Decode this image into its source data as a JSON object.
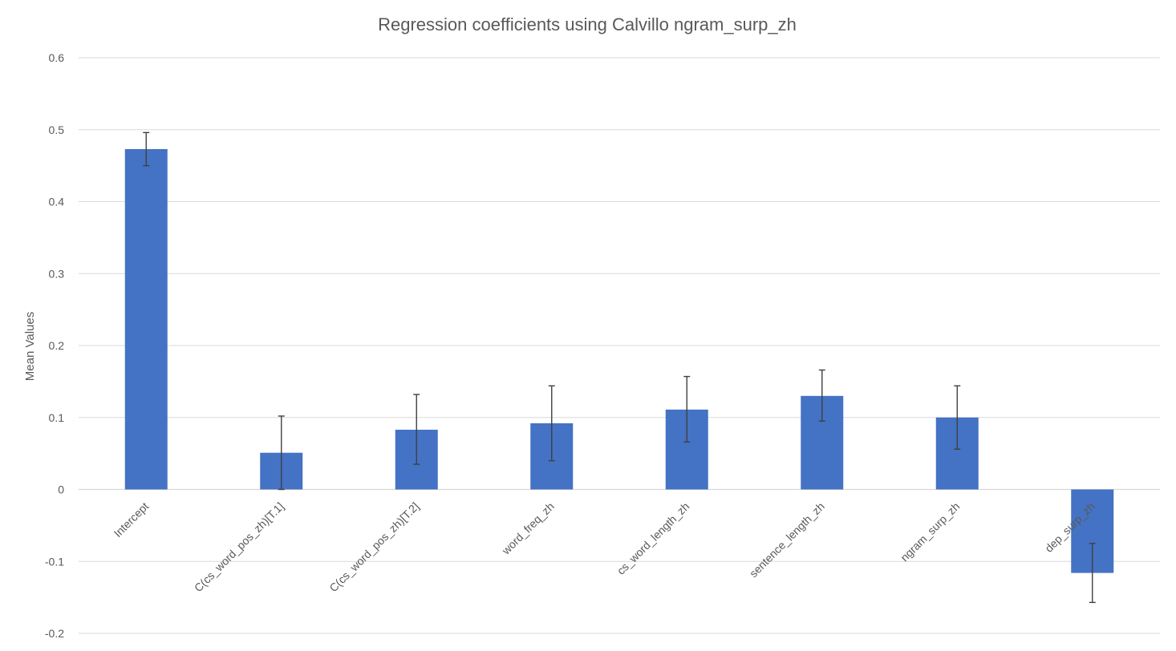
{
  "chart_data": {
    "type": "bar",
    "title": "Regression coefficients using Calvillo ngram_surp_zh",
    "xlabel": "",
    "ylabel": "Mean Values",
    "ylim": [
      -0.2,
      0.6
    ],
    "yticks": [
      0.6,
      0.5,
      0.4,
      0.3,
      0.2,
      0.1,
      0,
      -0.1,
      -0.2
    ],
    "ytick_labels": [
      "0.6",
      "0.5",
      "0.4",
      "0.3",
      "0.2",
      "0.1",
      "0",
      "-0.1",
      "-0.2"
    ],
    "grid": true,
    "legend": "none",
    "bar_color": "#4472C4",
    "error_color": "#404040",
    "categories": [
      "Intercept",
      "C(cs_word_pos_zh)[T.1]",
      "C(cs_word_pos_zh)[T.2]",
      "word_freq_zh",
      "cs_word_length_zh",
      "sentence_length_zh",
      "ngram_surp_zh",
      "dep_surp_zh"
    ],
    "values": [
      0.473,
      0.051,
      0.083,
      0.092,
      0.111,
      0.13,
      0.1,
      -0.116
    ],
    "error_low": [
      0.45,
      0.0,
      0.035,
      0.04,
      0.066,
      0.095,
      0.056,
      -0.157
    ],
    "error_high": [
      0.496,
      0.102,
      0.132,
      0.144,
      0.157,
      0.166,
      0.144,
      -0.075
    ]
  }
}
